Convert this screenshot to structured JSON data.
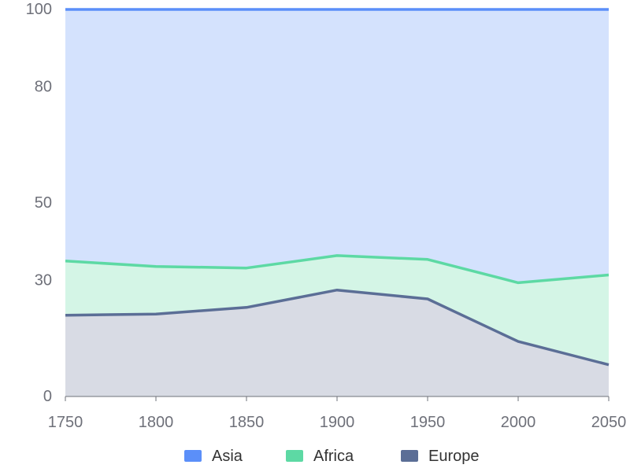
{
  "chart_data": {
    "type": "area",
    "stacked": true,
    "x": [
      1750,
      1800,
      1850,
      1900,
      1950,
      2000,
      2050
    ],
    "y_ticks": [
      0,
      30,
      50,
      80,
      100
    ],
    "ylim": [
      0,
      100
    ],
    "grid": true,
    "legend_position": "bottom",
    "series": [
      {
        "name": "Europe",
        "color": "#5b6e96",
        "fill": "#d8dbe4",
        "values": [
          21,
          21.3,
          23,
          27.5,
          25.2,
          14.2,
          8.2
        ]
      },
      {
        "name": "Africa",
        "color": "#5dd9a4",
        "fill": "#d4f5e6",
        "values": [
          35,
          33.6,
          33.2,
          36.4,
          35.4,
          29.4,
          31.4
        ]
      },
      {
        "name": "Asia",
        "color": "#5b8ff9",
        "fill": "#d4e2fd",
        "values": [
          100,
          100,
          100,
          100,
          100,
          100,
          100
        ]
      }
    ],
    "legend_order": [
      "Asia",
      "Africa",
      "Europe"
    ]
  }
}
